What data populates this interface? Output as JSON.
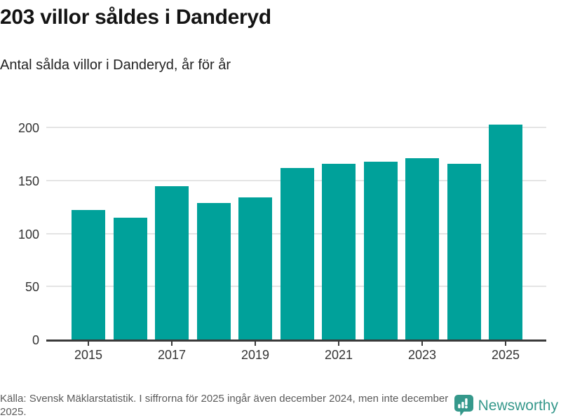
{
  "header": {
    "title": "203 villor såldes i Danderyd",
    "subtitle": "Antal sålda villor i Danderyd, år för år"
  },
  "chart_data": {
    "type": "bar",
    "categories": [
      "2015",
      "2016",
      "2017",
      "2018",
      "2019",
      "2020",
      "2021",
      "2022",
      "2023",
      "2024",
      "2025"
    ],
    "values": [
      122,
      115,
      145,
      129,
      134,
      162,
      166,
      168,
      171,
      166,
      203
    ],
    "title": "203 villor såldes i Danderyd",
    "subtitle": "Antal sålda villor i Danderyd, år för år",
    "xlabel": "",
    "ylabel": "",
    "x_tick_labels": [
      "2015",
      "2017",
      "2019",
      "2021",
      "2023",
      "2025"
    ],
    "y_ticks": [
      0,
      50,
      100,
      150,
      200
    ],
    "ylim": [
      0,
      210
    ],
    "grid": true,
    "legend": false,
    "bar_color": "#00a19a",
    "gridline_color": "#e4e4e4",
    "axis_color": "#3a3a3a",
    "tick_label_color": "#333333"
  },
  "footer": {
    "source": "Källa: Svensk Mäklarstatistik. I siffrorna för 2025 ingår även december 2024, men inte december 2025.",
    "brand": "Newsworthy",
    "brand_color": "#35988b",
    "logo_icon": "speech-bubble-bar-chart-icon"
  }
}
